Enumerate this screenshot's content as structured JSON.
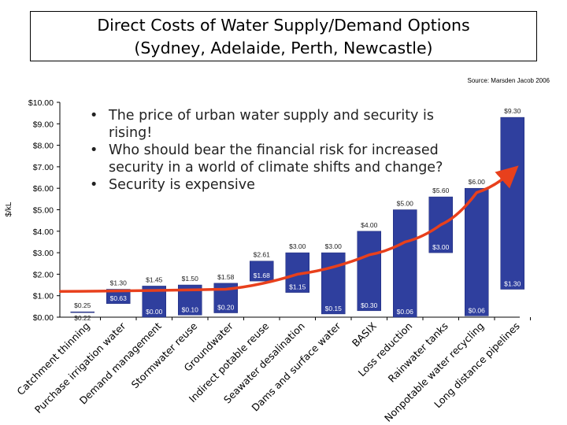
{
  "title": {
    "line1": "Direct Costs of Water Supply/Demand Options",
    "line2": "(Sydney, Adelaide, Perth, Newcastle)"
  },
  "source": "Source: Marsden Jacob 2006",
  "bullets": [
    "The price of urban water supply and security is rising!",
    "Who should bear the financial risk for increased security in a world of climate shifts and change?",
    "Security is expensive"
  ],
  "colors": {
    "bar": "#2f3f9e",
    "bar_dark": "#1e2a78",
    "trend": "#e8401c",
    "axis": "#000000"
  },
  "chart_data": {
    "type": "bar",
    "subtype": "floating-range",
    "ylabel": "$/kL",
    "ylim": [
      0,
      10
    ],
    "yticks": [
      "$0.00",
      "$1.00",
      "$2.00",
      "$3.00",
      "$4.00",
      "$5.00",
      "$6.00",
      "$7.00",
      "$8.00",
      "$9.00",
      "$10.00"
    ],
    "grid": false,
    "categories": [
      "Catchment thinning",
      "Purchase irrigation water",
      "Demand management",
      "Stormwater reuse",
      "Groundwater",
      "Indirect potable reuse",
      "Seawater desalination",
      "Dams and surface water",
      "BASIX",
      "Loss reduction",
      "Rainwater tanks",
      "Nonpotable water recycling",
      "Long distance pipelines"
    ],
    "low": [
      0.22,
      0.63,
      0.0,
      0.1,
      0.2,
      1.68,
      1.15,
      0.15,
      0.3,
      null,
      3.0,
      0.06,
      1.3
    ],
    "high": [
      0.25,
      1.3,
      1.45,
      1.5,
      1.58,
      2.61,
      3.0,
      3.0,
      4.0,
      5.0,
      5.6,
      6.0,
      9.3
    ],
    "low_labels": [
      "$0.22",
      "$0.63",
      "$0.00",
      "$0.10",
      "$0.20",
      "$1.68",
      "$1.15",
      "$0.15",
      "$0.30",
      "$0.06",
      "$3.00",
      "$0.06",
      "$1.30"
    ],
    "high_labels": [
      "$0.25",
      "$1.30",
      "$1.45",
      "$1.50",
      "$1.58",
      "$2.61",
      "$3.00",
      "$3.00",
      "$4.00",
      "$5.00",
      "$5.60",
      "$6.00",
      "$9.30"
    ],
    "trend_line": {
      "x": [
        0,
        4,
        6,
        8,
        9,
        10,
        11,
        12
      ],
      "y": [
        1.2,
        1.3,
        2.0,
        2.9,
        3.5,
        4.3,
        5.8,
        6.8
      ]
    }
  }
}
